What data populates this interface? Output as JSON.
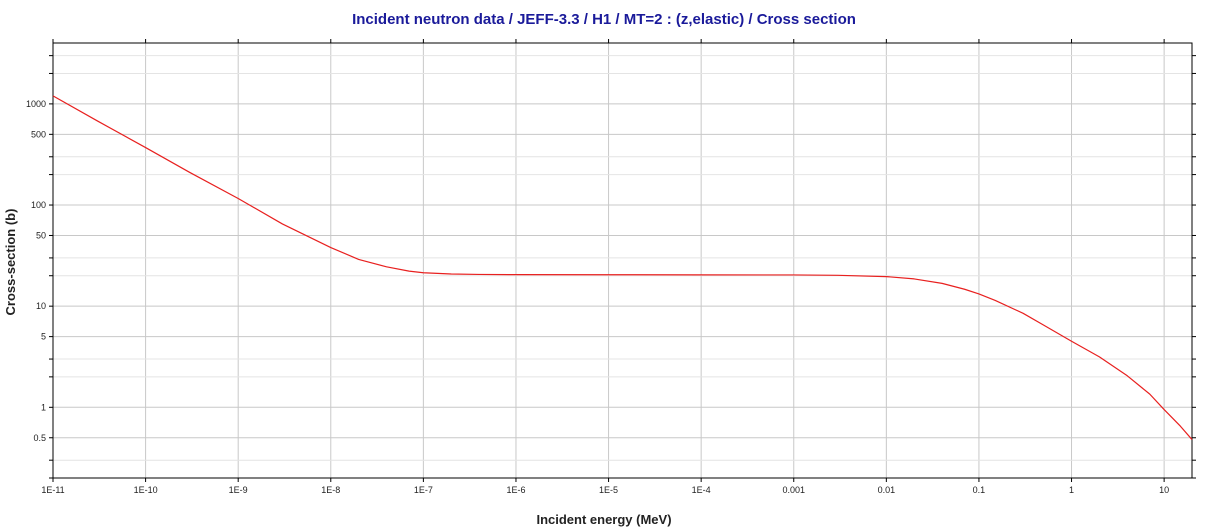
{
  "chart_data": {
    "type": "line",
    "title": "Incident neutron data / JEFF-3.3 / H1 / MT=2 : (z,elastic) / Cross section",
    "xlabel": "Incident energy (MeV)",
    "ylabel": "Cross-section (b)",
    "x_scale": "log",
    "y_scale": "log",
    "xlim": [
      1e-11,
      20
    ],
    "ylim": [
      0.2,
      4000
    ],
    "grid": true,
    "colors": {
      "series": "#e8201f",
      "grid_major": "#c8c8c8",
      "grid_minor": "#e4e4e4",
      "axis": "#000000",
      "title": "#1a1a9a"
    },
    "x_ticks": [
      {
        "value": 1e-11,
        "label": "1E-11"
      },
      {
        "value": 1e-10,
        "label": "1E-10"
      },
      {
        "value": 1e-09,
        "label": "1E-9"
      },
      {
        "value": 1e-08,
        "label": "1E-8"
      },
      {
        "value": 1e-07,
        "label": "1E-7"
      },
      {
        "value": 1e-06,
        "label": "1E-6"
      },
      {
        "value": 1e-05,
        "label": "1E-5"
      },
      {
        "value": 0.0001,
        "label": "1E-4"
      },
      {
        "value": 0.001,
        "label": "0.001"
      },
      {
        "value": 0.01,
        "label": "0.01"
      },
      {
        "value": 0.1,
        "label": "0.1"
      },
      {
        "value": 1,
        "label": "1"
      },
      {
        "value": 10,
        "label": "10"
      }
    ],
    "y_ticks": [
      {
        "value": 0.5,
        "label": "0.5"
      },
      {
        "value": 1,
        "label": "1"
      },
      {
        "value": 5,
        "label": "5"
      },
      {
        "value": 10,
        "label": "10"
      },
      {
        "value": 50,
        "label": "50"
      },
      {
        "value": 100,
        "label": "100"
      },
      {
        "value": 500,
        "label": "500"
      },
      {
        "value": 1000,
        "label": "1000"
      }
    ],
    "series": [
      {
        "x": [
          1e-11,
          3e-11,
          1e-10,
          3e-10,
          1e-09,
          3e-09,
          1e-08,
          2e-08,
          4e-08,
          7e-08,
          1e-07,
          2e-07,
          4e-07,
          1e-06,
          1e-05,
          0.0001,
          0.001,
          0.003,
          0.01,
          0.02,
          0.04,
          0.07,
          0.1,
          0.15,
          0.3,
          0.5,
          1,
          2,
          4,
          7,
          10,
          15,
          20
        ],
        "y": [
          1200,
          680,
          370,
          210,
          116,
          65,
          38,
          29,
          24.5,
          22.2,
          21.4,
          20.8,
          20.6,
          20.5,
          20.45,
          20.4,
          20.35,
          20.2,
          19.6,
          18.6,
          16.8,
          14.7,
          13.2,
          11.4,
          8.5,
          6.5,
          4.5,
          3.15,
          2.05,
          1.35,
          0.95,
          0.65,
          0.48
        ]
      }
    ]
  }
}
